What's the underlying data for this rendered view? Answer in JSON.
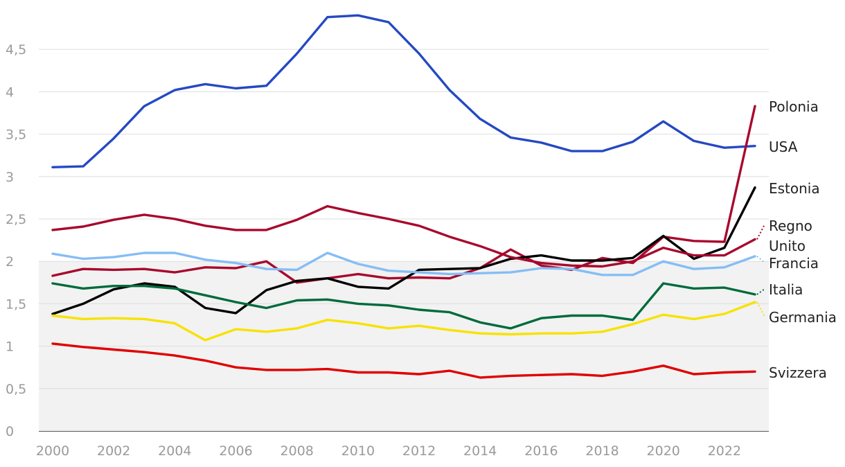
{
  "chart_data": {
    "type": "line",
    "title": "",
    "xlabel": "",
    "ylabel": "",
    "x": [
      2000,
      2001,
      2002,
      2003,
      2004,
      2005,
      2006,
      2007,
      2008,
      2009,
      2010,
      2011,
      2012,
      2013,
      2014,
      2015,
      2016,
      2017,
      2018,
      2019,
      2020,
      2021,
      2022,
      2023
    ],
    "xlim": [
      2000,
      2023
    ],
    "ylim": [
      0,
      5
    ],
    "y_ticks": [
      0,
      0.5,
      1,
      1.5,
      2,
      2.5,
      3,
      3.5,
      4,
      4.5
    ],
    "y_tick_labels": [
      "0",
      "0,5",
      "1",
      "1,5",
      "2",
      "2,5",
      "3",
      "3,5",
      "4",
      "4,5"
    ],
    "x_ticks": [
      2000,
      2002,
      2004,
      2006,
      2008,
      2010,
      2012,
      2014,
      2016,
      2018,
      2020,
      2022
    ],
    "x_tick_labels": [
      "2000",
      "2002",
      "2004",
      "2006",
      "2008",
      "2010",
      "2012",
      "2014",
      "2016",
      "2018",
      "2020",
      "2022"
    ],
    "grid": true,
    "shaded_band": [
      0,
      2
    ],
    "legend": "right-end labels",
    "series": [
      {
        "name": "USA",
        "label_lines": [
          "USA"
        ],
        "color": "#2549c2",
        "values": [
          3.11,
          3.12,
          3.45,
          3.83,
          4.02,
          4.09,
          4.04,
          4.07,
          4.45,
          4.88,
          4.9,
          4.82,
          4.45,
          4.02,
          3.68,
          3.46,
          3.4,
          3.3,
          3.3,
          3.41,
          3.65,
          3.42,
          3.34,
          3.36
        ]
      },
      {
        "name": "Polonia",
        "label_lines": [
          "Polonia"
        ],
        "color": "#a8082d",
        "values": [
          1.83,
          1.91,
          1.9,
          1.91,
          1.87,
          1.93,
          1.92,
          2.0,
          1.75,
          1.8,
          1.85,
          1.8,
          1.81,
          1.8,
          1.92,
          2.14,
          1.95,
          1.9,
          2.04,
          1.98,
          2.29,
          2.24,
          2.23,
          3.83
        ]
      },
      {
        "name": "Estonia",
        "label_lines": [
          "Estonia"
        ],
        "color": "#000000",
        "values": [
          1.38,
          1.5,
          1.67,
          1.74,
          1.7,
          1.45,
          1.39,
          1.66,
          1.77,
          1.8,
          1.7,
          1.68,
          1.9,
          1.91,
          1.92,
          2.03,
          2.07,
          2.01,
          2.01,
          2.04,
          2.3,
          2.03,
          2.16,
          2.87
        ]
      },
      {
        "name": "Regno Unito",
        "label_lines": [
          "Regno",
          "Unito"
        ],
        "color": "#a8082d",
        "values": [
          2.37,
          2.41,
          2.49,
          2.55,
          2.5,
          2.42,
          2.37,
          2.37,
          2.49,
          2.65,
          2.57,
          2.5,
          2.42,
          2.29,
          2.18,
          2.05,
          1.98,
          1.95,
          1.94,
          2.0,
          2.16,
          2.07,
          2.07,
          2.26
        ]
      },
      {
        "name": "Francia",
        "label_lines": [
          "Francia"
        ],
        "color": "#86bdf5",
        "values": [
          2.09,
          2.03,
          2.05,
          2.1,
          2.1,
          2.02,
          1.98,
          1.91,
          1.9,
          2.1,
          1.97,
          1.89,
          1.87,
          1.85,
          1.86,
          1.87,
          1.92,
          1.91,
          1.84,
          1.84,
          2.0,
          1.91,
          1.93,
          2.06
        ]
      },
      {
        "name": "Italia",
        "label_lines": [
          "Italia"
        ],
        "color": "#006b3c",
        "values": [
          1.74,
          1.68,
          1.71,
          1.71,
          1.68,
          1.6,
          1.52,
          1.45,
          1.54,
          1.55,
          1.5,
          1.48,
          1.43,
          1.4,
          1.28,
          1.21,
          1.33,
          1.36,
          1.36,
          1.31,
          1.74,
          1.68,
          1.69,
          1.61
        ]
      },
      {
        "name": "Germania",
        "label_lines": [
          "Germania"
        ],
        "color": "#f7e200",
        "values": [
          1.36,
          1.32,
          1.33,
          1.32,
          1.27,
          1.07,
          1.2,
          1.17,
          1.21,
          1.31,
          1.27,
          1.21,
          1.24,
          1.19,
          1.15,
          1.14,
          1.15,
          1.15,
          1.17,
          1.26,
          1.37,
          1.32,
          1.38,
          1.52
        ]
      },
      {
        "name": "Svizzera",
        "label_lines": [
          "Svizzera"
        ],
        "color": "#e00000",
        "values": [
          1.03,
          0.99,
          0.96,
          0.93,
          0.89,
          0.83,
          0.75,
          0.72,
          0.72,
          0.73,
          0.69,
          0.69,
          0.67,
          0.71,
          0.63,
          0.65,
          0.66,
          0.67,
          0.65,
          0.7,
          0.77,
          0.67,
          0.69,
          0.7
        ]
      }
    ]
  }
}
